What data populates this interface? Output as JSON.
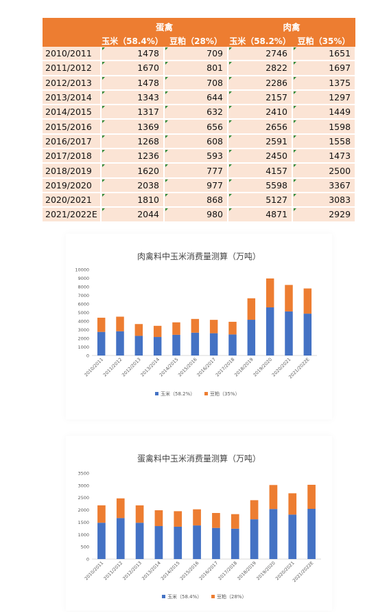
{
  "table": {
    "group_headers": [
      "蛋禽",
      "肉禽"
    ],
    "sub_headers": [
      "玉米（58.4%）",
      "豆粕（28%）",
      "玉米（58.2%）",
      "豆粕（35%）"
    ],
    "rows": [
      {
        "year": "2010/2011",
        "egg_corn": "1478",
        "egg_meal": "709",
        "meat_corn": "2746",
        "meat_meal": "1651"
      },
      {
        "year": "2011/2012",
        "egg_corn": "1670",
        "egg_meal": "801",
        "meat_corn": "2822",
        "meat_meal": "1697"
      },
      {
        "year": "2012/2013",
        "egg_corn": "1478",
        "egg_meal": "708",
        "meat_corn": "2286",
        "meat_meal": "1375"
      },
      {
        "year": "2013/2014",
        "egg_corn": "1343",
        "egg_meal": "644",
        "meat_corn": "2157",
        "meat_meal": "1297"
      },
      {
        "year": "2014/2015",
        "egg_corn": "1317",
        "egg_meal": "632",
        "meat_corn": "2410",
        "meat_meal": "1449"
      },
      {
        "year": "2015/2016",
        "egg_corn": "1369",
        "egg_meal": "656",
        "meat_corn": "2656",
        "meat_meal": "1598"
      },
      {
        "year": "2016/2017",
        "egg_corn": "1268",
        "egg_meal": "608",
        "meat_corn": "2591",
        "meat_meal": "1558"
      },
      {
        "year": "2017/2018",
        "egg_corn": "1236",
        "egg_meal": "593",
        "meat_corn": "2450",
        "meat_meal": "1473"
      },
      {
        "year": "2018/2019",
        "egg_corn": "1620",
        "egg_meal": "777",
        "meat_corn": "4157",
        "meat_meal": "2500"
      },
      {
        "year": "2019/2020",
        "egg_corn": "2038",
        "egg_meal": "977",
        "meat_corn": "5598",
        "meat_meal": "3367"
      },
      {
        "year": "2020/2021",
        "egg_corn": "1810",
        "egg_meal": "868",
        "meat_corn": "5127",
        "meat_meal": "3083"
      },
      {
        "year": "2021/2022E",
        "egg_corn": "2044",
        "egg_meal": "980",
        "meat_corn": "4871",
        "meat_meal": "2929"
      }
    ]
  },
  "colors": {
    "corn": "#4472c4",
    "meal": "#ed7d31",
    "header": "#ed7d31",
    "cell": "#fbe4d5",
    "axis_text": "#595959"
  },
  "chart_data": [
    {
      "type": "bar",
      "stacked": true,
      "title": "肉禽料中玉米消费量测算（万吨）",
      "categories": [
        "2010/2011",
        "2011/2012",
        "2012/2013",
        "2013/2014",
        "2014/2015",
        "2015/2016",
        "2016/2017",
        "2017/2018",
        "2018/2019",
        "2019/2020",
        "2020/2021",
        "2021/2022E"
      ],
      "series": [
        {
          "name": "玉米（58.2%）",
          "values": [
            2746,
            2822,
            2286,
            2157,
            2410,
            2656,
            2591,
            2450,
            4157,
            5598,
            5127,
            4871
          ]
        },
        {
          "name": "豆粕（35%）",
          "values": [
            1651,
            1697,
            1375,
            1297,
            1449,
            1598,
            1558,
            1473,
            2500,
            3367,
            3083,
            2929
          ]
        }
      ],
      "ylim": [
        0,
        10000
      ],
      "yticks": [
        0,
        1000,
        2000,
        3000,
        4000,
        5000,
        6000,
        7000,
        8000,
        9000,
        10000
      ],
      "grid": false,
      "legend": "bottom"
    },
    {
      "type": "bar",
      "stacked": true,
      "title": "蛋禽料中玉米消费量测算（万吨）",
      "categories": [
        "2010/2011",
        "2011/2012",
        "2012/2013",
        "2013/2014",
        "2014/2015",
        "2015/2016",
        "2016/2017",
        "2017/2018",
        "2018/2019",
        "2019/2020",
        "2020/2021",
        "2021/2022E"
      ],
      "series": [
        {
          "name": "玉米（58.4%）",
          "values": [
            1478,
            1670,
            1478,
            1343,
            1317,
            1369,
            1268,
            1236,
            1620,
            2038,
            1810,
            2044
          ]
        },
        {
          "name": "豆粕（28%）",
          "values": [
            709,
            801,
            708,
            644,
            632,
            656,
            608,
            593,
            777,
            977,
            868,
            980
          ]
        }
      ],
      "ylim": [
        0,
        3500
      ],
      "yticks": [
        0,
        500,
        1000,
        1500,
        2000,
        2500,
        3000,
        3500
      ],
      "grid": false,
      "legend": "bottom"
    }
  ]
}
